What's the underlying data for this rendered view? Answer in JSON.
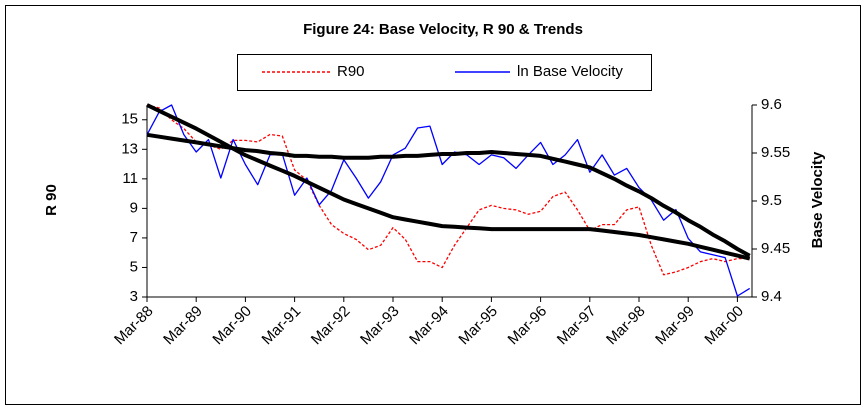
{
  "chart_data": {
    "type": "line",
    "title": "Figure 24: Base Velocity, R 90 & Trends",
    "ylabel": "R 90",
    "y2label": "Base Velocity",
    "categories": [
      "Mar-88",
      null,
      null,
      null,
      "Mar-89",
      null,
      null,
      null,
      "Mar-90",
      null,
      null,
      null,
      "Mar-91",
      null,
      null,
      null,
      "Mar-92",
      null,
      null,
      null,
      "Mar-93",
      null,
      null,
      null,
      "Mar-94",
      null,
      null,
      null,
      "Mar-95",
      null,
      null,
      null,
      "Mar-96",
      null,
      null,
      null,
      "Mar-97",
      null,
      null,
      null,
      "Mar-98",
      null,
      null,
      null,
      "Mar-99",
      null,
      null,
      null,
      "Mar-00",
      null
    ],
    "ylim": [
      3,
      16
    ],
    "yticks": [
      3,
      5,
      7,
      9,
      11,
      13,
      15
    ],
    "y2lim": [
      9.4,
      9.6
    ],
    "y2ticks": [
      9.4,
      9.45,
      9.5,
      9.55,
      9.6
    ],
    "grid": false,
    "legend": "top",
    "series": [
      {
        "name": "R90",
        "color": "#ff0000",
        "dashed": true,
        "axis": "y",
        "values": [
          16.0,
          15.8,
          15.0,
          14.4,
          13.5,
          13.3,
          13.0,
          13.6,
          13.6,
          13.5,
          14.0,
          13.9,
          11.6,
          10.9,
          9.2,
          7.9,
          7.3,
          6.9,
          6.2,
          6.5,
          7.7,
          6.9,
          5.4,
          5.4,
          5.0,
          6.5,
          7.7,
          8.9,
          9.2,
          9.0,
          8.9,
          8.6,
          8.8,
          9.8,
          10.1,
          8.9,
          7.5,
          7.9,
          7.9,
          8.9,
          9.1,
          6.5,
          4.5,
          4.7,
          5.0,
          5.4,
          5.6,
          5.4,
          5.6,
          5.6
        ]
      },
      {
        "name": "ln Base Velocity",
        "color": "#0000ff",
        "dashed": false,
        "axis": "y2",
        "values": [
          9.569,
          9.593,
          9.6,
          9.569,
          9.551,
          9.564,
          9.524,
          9.564,
          9.538,
          9.517,
          9.548,
          9.549,
          9.506,
          9.524,
          9.496,
          9.511,
          9.543,
          9.524,
          9.503,
          9.52,
          9.548,
          9.555,
          9.576,
          9.578,
          9.538,
          9.551,
          9.548,
          9.538,
          9.548,
          9.545,
          9.534,
          9.548,
          9.561,
          9.538,
          9.548,
          9.564,
          9.53,
          9.548,
          9.527,
          9.534,
          9.514,
          9.501,
          9.48,
          9.491,
          9.461,
          9.447,
          9.444,
          9.441,
          9.401,
          9.409
        ]
      },
      {
        "color": "#000000",
        "dashed": false,
        "axis": "y",
        "values": [
          16,
          15.6,
          15.2,
          14.8,
          14.4,
          13.95,
          13.5,
          13.05,
          12.6,
          12.25,
          11.9,
          11.55,
          11.2,
          10.8,
          10.4,
          10.0,
          9.6,
          9.3,
          9.0,
          8.7,
          8.4,
          8.25,
          8.1,
          7.95,
          7.8,
          7.75,
          7.7,
          7.65,
          7.6,
          7.6,
          7.6,
          7.6,
          7.6,
          7.6,
          7.6,
          7.6,
          7.6,
          7.5,
          7.4,
          7.3,
          7.2,
          7.05,
          6.9,
          6.75,
          6.6,
          6.4,
          6.2,
          6.0,
          5.8,
          5.6
        ]
      },
      {
        "color": "#000000",
        "dashed": false,
        "axis": "y2",
        "values": [
          9.569,
          9.567,
          9.565,
          9.563,
          9.561,
          9.559,
          9.557,
          9.555,
          9.553,
          9.552,
          9.55,
          9.549,
          9.547,
          9.547,
          9.546,
          9.546,
          9.545,
          9.545,
          9.545,
          9.546,
          9.546,
          9.547,
          9.547,
          9.548,
          9.549,
          9.549,
          9.55,
          9.55,
          9.551,
          9.55,
          9.549,
          9.548,
          9.547,
          9.544,
          9.541,
          9.538,
          9.535,
          9.529,
          9.523,
          9.516,
          9.51,
          9.503,
          9.495,
          9.488,
          9.48,
          9.473,
          9.465,
          9.458,
          9.45,
          9.443
        ]
      }
    ]
  }
}
